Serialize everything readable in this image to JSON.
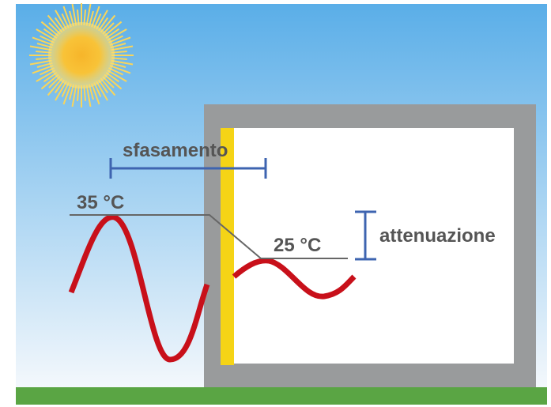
{
  "labels": {
    "phase_shift": "sfasamento",
    "outside_temp": "35 °C",
    "inside_temp": "25 °C",
    "attenuation": "attenuazione"
  }
}
